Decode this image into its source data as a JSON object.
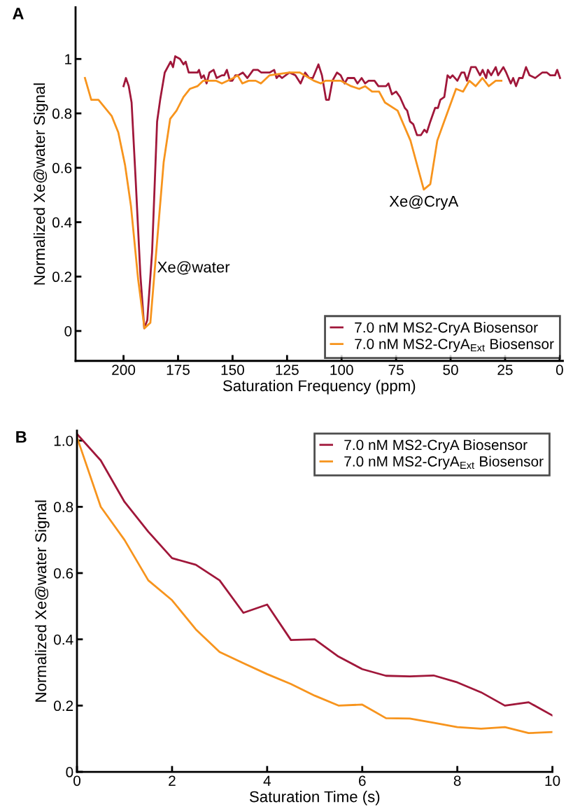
{
  "chart_data": [
    {
      "type": "line",
      "title": "A",
      "xlabel": "Saturation Frequency (ppm)",
      "ylabel": "Normalized Xe@water Signal",
      "xlim": [
        222,
        -1.5
      ],
      "xticks": [
        200,
        175,
        150,
        125,
        100,
        75,
        50,
        25,
        0
      ],
      "ylim": [
        -0.11,
        1.19
      ],
      "yticks": [
        0,
        0.2,
        0.4,
        0.6,
        0.8,
        1
      ],
      "grid": false,
      "legend": "bottom right",
      "marker": "none",
      "line_style": "solid",
      "annotations": [
        {
          "text": "Xe@water",
          "x": 184.6,
          "y": 0.23
        },
        {
          "text": "Xe@CryA",
          "x": 62.3,
          "y": 0.52
        }
      ],
      "series": [
        {
          "name": "7.0 nM MS2-CryA Biosensor",
          "color": "#a0173a",
          "x": [
            200,
            198.9,
            197.6,
            196.3,
            194.4,
            192.3,
            190.5,
            189.1,
            186.9,
            184.6,
            183.2,
            181.1,
            178.4,
            177.3,
            176.3,
            174.1,
            172.5,
            171.5,
            170.1,
            167.7,
            166.1,
            165.4,
            164.3,
            163.2,
            161.9,
            160.6,
            158.7,
            157.3,
            154.9,
            153.8,
            152.6,
            151.2,
            150.1,
            148.7,
            147.4,
            145.3,
            143.2,
            140.5,
            138.4,
            136.8,
            135.2,
            133,
            130.9,
            129.8,
            128.7,
            127.3,
            123.9,
            121.2,
            118.8,
            116.7,
            114.8,
            113.2,
            110.6,
            109,
            107.1,
            105.8,
            104.2,
            102.1,
            100.4,
            98.6,
            97.2,
            94.2,
            92.7,
            90.8,
            89.2,
            87.6,
            84.9,
            83.1,
            81.2,
            79.6,
            78.5,
            76.9,
            75,
            73.2,
            71,
            69.9,
            68.6,
            67.1,
            65.4,
            63.6,
            62,
            60.9,
            59.3,
            57.1,
            55.8,
            54.7,
            52.9,
            51.4,
            50.2,
            49.1,
            46.9,
            45,
            43.7,
            42.5,
            40.6,
            38.5,
            36.5,
            35.3,
            33.7,
            32.9,
            31.4,
            29.3,
            28.2,
            25.8,
            24.5,
            22.4,
            21.3,
            20,
            18.6,
            17,
            15.4,
            13.8,
            11.2,
            8,
            5.8,
            4.3,
            2.1,
            1.1,
            -0.2
          ],
          "values": [
            0.9,
            0.93,
            0.9,
            0.84,
            0.55,
            0.21,
            0.01,
            0.04,
            0.29,
            0.77,
            0.85,
            0.95,
            0.99,
            0.97,
            1.01,
            1.0,
            0.98,
            0.99,
            0.95,
            0.95,
            0.95,
            0.96,
            0.93,
            0.94,
            0.91,
            0.95,
            0.96,
            0.93,
            0.94,
            0.94,
            0.96,
            0.92,
            0.92,
            0.94,
            0.94,
            0.95,
            0.93,
            0.96,
            0.96,
            0.95,
            0.95,
            0.95,
            0.96,
            0.93,
            0.94,
            0.93,
            0.95,
            0.94,
            0.91,
            0.95,
            0.93,
            0.93,
            0.98,
            0.94,
            0.85,
            0.85,
            0.92,
            0.95,
            0.94,
            0.91,
            0.93,
            0.93,
            0.91,
            0.93,
            0.91,
            0.92,
            0.92,
            0.9,
            0.9,
            0.9,
            0.91,
            0.87,
            0.88,
            0.86,
            0.82,
            0.81,
            0.77,
            0.76,
            0.72,
            0.72,
            0.74,
            0.73,
            0.77,
            0.82,
            0.82,
            0.85,
            0.86,
            0.94,
            0.93,
            0.94,
            0.92,
            0.95,
            0.95,
            0.92,
            0.97,
            0.97,
            0.94,
            0.96,
            0.93,
            0.96,
            0.94,
            0.97,
            0.94,
            0.97,
            0.95,
            0.91,
            0.93,
            0.9,
            0.93,
            0.93,
            0.97,
            0.94,
            0.93,
            0.95,
            0.95,
            0.94,
            0.94,
            0.96,
            0.93
          ]
        },
        {
          "name": "7.0 nM MS2-CryA$_{Ext}$ Biosensor",
          "color": "#f7941d",
          "x": [
            217.7,
            214.8,
            211.5,
            205.4,
            202.4,
            199.3,
            196.6,
            193.3,
            190.4,
            187.7,
            181.6,
            178.6,
            175.7,
            172.5,
            169.6,
            166.1,
            163.5,
            157.5,
            154.9,
            149.6,
            147.7,
            145.5,
            142.6,
            139.4,
            137,
            133,
            123.9,
            119.1,
            112.7,
            109.5,
            107.4,
            100.4,
            95.6,
            91.9,
            89.2,
            86,
            82.8,
            80.1,
            74.3,
            68.4,
            62.3,
            59.3,
            56.1,
            53.4,
            47.5,
            44.3,
            41.4,
            38.5,
            35.4,
            32.5,
            29.3,
            26.7
          ],
          "values": [
            0.93,
            0.85,
            0.85,
            0.79,
            0.73,
            0.61,
            0.46,
            0.19,
            0.01,
            0.03,
            0.62,
            0.78,
            0.81,
            0.86,
            0.89,
            0.9,
            0.92,
            0.92,
            0.91,
            0.93,
            0.94,
            0.91,
            0.92,
            0.92,
            0.91,
            0.94,
            0.95,
            0.95,
            0.92,
            0.91,
            0.92,
            0.92,
            0.9,
            0.89,
            0.9,
            0.88,
            0.88,
            0.84,
            0.81,
            0.7,
            0.52,
            0.54,
            0.7,
            0.76,
            0.89,
            0.88,
            0.92,
            0.9,
            0.93,
            0.9,
            0.92,
            0.92
          ]
        }
      ]
    },
    {
      "type": "line",
      "title": "B",
      "xlabel": "Saturation Time (s)",
      "ylabel": "Normalized Xe@water Signal",
      "xlim": [
        0,
        10
      ],
      "xticks": [
        0,
        2,
        4,
        6,
        8,
        10
      ],
      "ylim": [
        0,
        1.03
      ],
      "yticks": [
        0,
        0.2,
        0.4,
        0.6,
        0.8,
        {
          "value": 1,
          "label": "1.0"
        }
      ],
      "grid": false,
      "legend": "top right",
      "marker": "none",
      "line_style": "solid",
      "x": [
        0,
        0.5,
        1,
        1.5,
        2,
        2.5,
        3,
        3.5,
        4,
        4.5,
        5,
        5.5,
        6,
        6.5,
        7,
        7.5,
        8,
        8.5,
        9,
        9.5,
        10
      ],
      "series": [
        {
          "name": "7.0 nM MS2-CryA Biosensor",
          "color": "#a0173a",
          "values": [
            1.02,
            0.94,
            0.815,
            0.725,
            0.645,
            0.625,
            0.578,
            0.48,
            0.505,
            0.398,
            0.4,
            0.348,
            0.31,
            0.29,
            0.288,
            0.291,
            0.27,
            0.24,
            0.2,
            0.21,
            0.17
          ]
        },
        {
          "name": "7.0 nM MS2-CryA$_{Ext}$ Biosensor",
          "color": "#f7941d",
          "values": [
            1.01,
            0.8,
            0.7,
            0.578,
            0.518,
            0.43,
            0.362,
            0.328,
            0.295,
            0.265,
            0.23,
            0.2,
            0.203,
            0.162,
            0.161,
            0.148,
            0.135,
            0.13,
            0.135,
            0.117,
            0.12
          ]
        }
      ]
    }
  ]
}
